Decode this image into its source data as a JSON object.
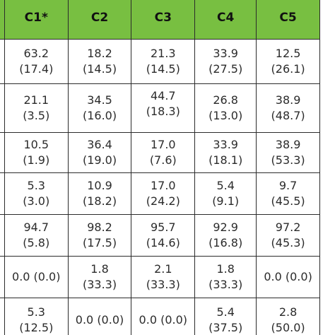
{
  "table": {
    "columns": [
      "",
      "C1*",
      "C2",
      "C3",
      "C4",
      "C5"
    ],
    "rows": [
      {
        "row_label": "",
        "cells": [
          {
            "value": "63.2",
            "sd": "(17.4)"
          },
          {
            "value": "18.2",
            "sd": "(14.5)"
          },
          {
            "value": "21.3",
            "sd": "(14.5)"
          },
          {
            "value": "33.9",
            "sd": "(27.5)"
          },
          {
            "value": "12.5",
            "sd": "(26.1)"
          }
        ]
      },
      {
        "row_label": "",
        "cells": [
          {
            "value": "21.1",
            "sd": "(3.5)"
          },
          {
            "value": "34.5",
            "sd": "(16.0)"
          },
          {
            "value": "44.7",
            "sd": "(18.3)"
          },
          {
            "value": "26.8",
            "sd": "(13.0)"
          },
          {
            "value": "38.9",
            "sd": "(48.7)"
          }
        ]
      },
      {
        "row_label": "",
        "cells": [
          {
            "value": "10.5",
            "sd": "(1.9)"
          },
          {
            "value": "36.4",
            "sd": "(19.0)"
          },
          {
            "value": "17.0",
            "sd": "(7.6)"
          },
          {
            "value": "33.9",
            "sd": "(18.1)"
          },
          {
            "value": "38.9",
            "sd": "(53.3)"
          }
        ]
      },
      {
        "row_label": ")",
        "cells": [
          {
            "value": "5.3",
            "sd": "(3.0)"
          },
          {
            "value": "10.9",
            "sd": "(18.2)"
          },
          {
            "value": "17.0",
            "sd": "(24.2)"
          },
          {
            "value": "5.4",
            "sd": "(9.1)"
          },
          {
            "value": "9.7",
            "sd": "(45.5)"
          }
        ]
      },
      {
        "row_label": "",
        "cells": [
          {
            "value": "94.7",
            "sd": "(5.8)"
          },
          {
            "value": "98.2",
            "sd": "(17.5)"
          },
          {
            "value": "95.7",
            "sd": "(14.6)"
          },
          {
            "value": "92.9",
            "sd": "(16.8)"
          },
          {
            "value": "97.2",
            "sd": "(45.3)"
          }
        ]
      },
      {
        "row_label": "",
        "cells": [
          {
            "value": "0.0 (0.0)",
            "sd": ""
          },
          {
            "value": "1.8",
            "sd": "(33.3)"
          },
          {
            "value": "2.1",
            "sd": "(33.3)"
          },
          {
            "value": "1.8",
            "sd": "(33.3)"
          },
          {
            "value": "0.0 (0.0)",
            "sd": ""
          }
        ]
      },
      {
        "row_label": "",
        "cells": [
          {
            "value": "5.3",
            "sd": "(12.5)"
          },
          {
            "value": "0.0 (0.0)",
            "sd": ""
          },
          {
            "value": "0.0 (0.0)",
            "sd": ""
          },
          {
            "value": "5.4",
            "sd": "(37.5)"
          },
          {
            "value": "2.8",
            "sd": "(50.0)"
          }
        ]
      }
    ]
  }
}
